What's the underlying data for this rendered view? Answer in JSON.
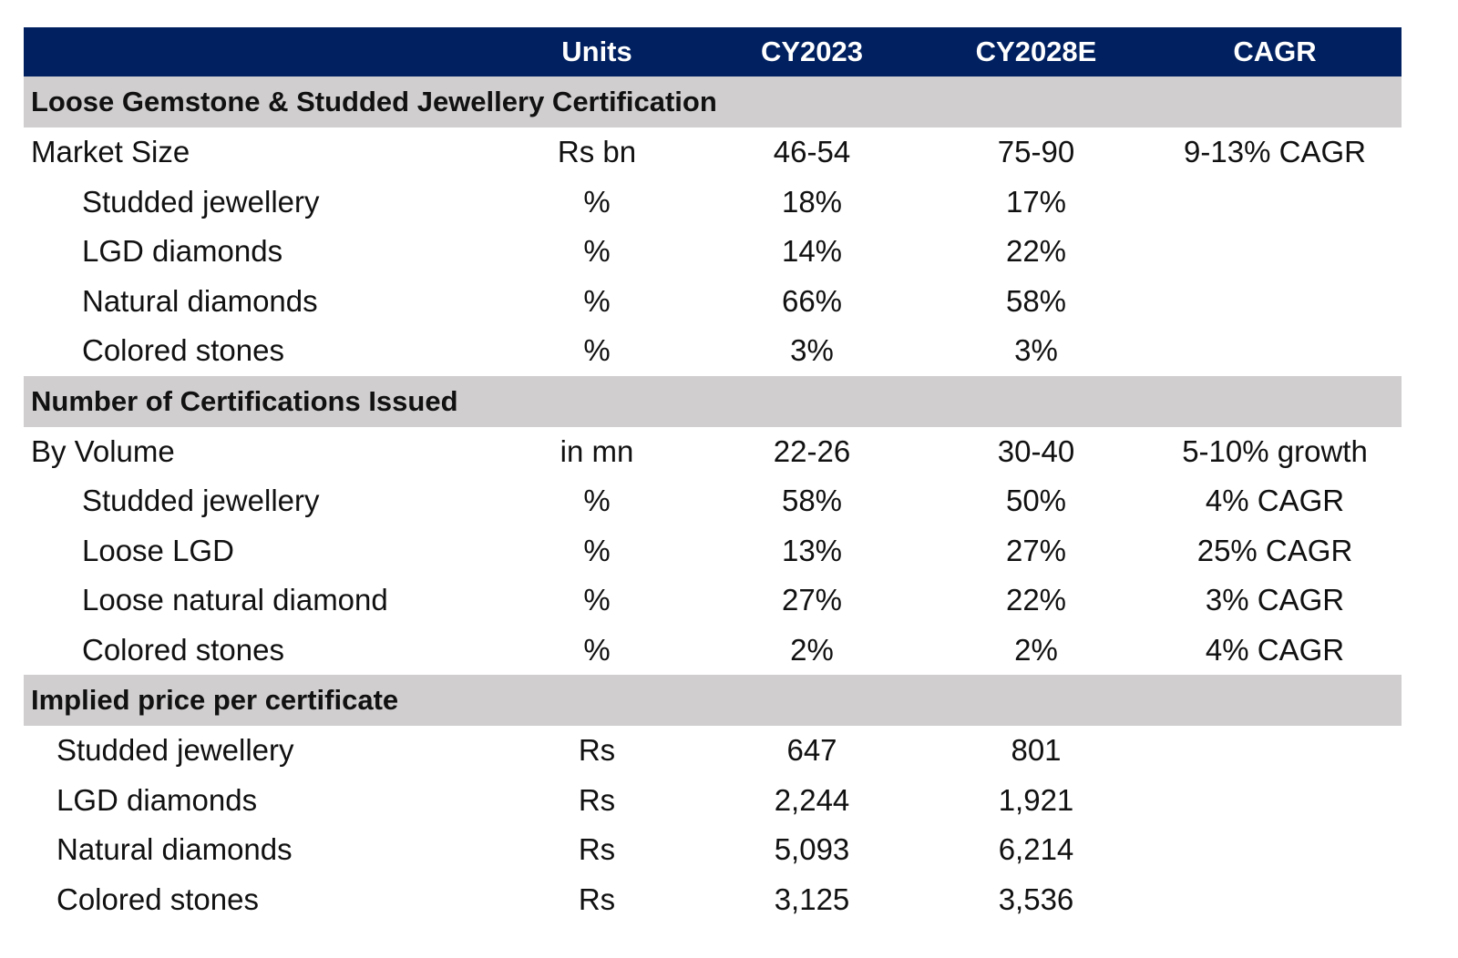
{
  "header": {
    "units": "Units",
    "cy2023": "CY2023",
    "cy2028e": "CY2028E",
    "cagr": "CAGR"
  },
  "colors": {
    "header_bg": "#002060",
    "section_bg": "#d0cece"
  },
  "sections": [
    {
      "title": "Loose Gemstone & Studded Jewellery Certification",
      "rows": [
        {
          "label": "Market Size",
          "units": "Rs bn",
          "cy2023": "46-54",
          "cy2028e": "75-90",
          "cagr": "9-13% CAGR"
        },
        {
          "label": "Studded jewellery",
          "units": "%",
          "cy2023": "18%",
          "cy2028e": "17%",
          "cagr": ""
        },
        {
          "label": "LGD diamonds",
          "units": "%",
          "cy2023": "14%",
          "cy2028e": "22%",
          "cagr": ""
        },
        {
          "label": "Natural diamonds",
          "units": "%",
          "cy2023": "66%",
          "cy2028e": "58%",
          "cagr": ""
        },
        {
          "label": "Colored stones",
          "units": "%",
          "cy2023": "3%",
          "cy2028e": "3%",
          "cagr": ""
        }
      ]
    },
    {
      "title": "Number of Certifications Issued",
      "rows": [
        {
          "label": "By Volume",
          "units": "in mn",
          "cy2023": "22-26",
          "cy2028e": "30-40",
          "cagr": "5-10% growth"
        },
        {
          "label": "Studded jewellery",
          "units": "%",
          "cy2023": "58%",
          "cy2028e": "50%",
          "cagr": "4% CAGR"
        },
        {
          "label": "Loose LGD",
          "units": "%",
          "cy2023": "13%",
          "cy2028e": "27%",
          "cagr": "25% CAGR"
        },
        {
          "label": "Loose natural diamond",
          "units": "%",
          "cy2023": "27%",
          "cy2028e": "22%",
          "cagr": "3% CAGR"
        },
        {
          "label": "Colored stones",
          "units": "%",
          "cy2023": "2%",
          "cy2028e": "2%",
          "cagr": "4% CAGR"
        }
      ]
    },
    {
      "title": "Implied price per certificate",
      "rows": [
        {
          "label": "Studded jewellery",
          "units": "Rs",
          "cy2023": "647",
          "cy2028e": "801",
          "cagr": ""
        },
        {
          "label": "LGD diamonds",
          "units": "Rs",
          "cy2023": "2,244",
          "cy2028e": "1,921",
          "cagr": ""
        },
        {
          "label": "Natural diamonds",
          "units": "Rs",
          "cy2023": "5,093",
          "cy2028e": "6,214",
          "cagr": ""
        },
        {
          "label": "Colored stones",
          "units": "Rs",
          "cy2023": "3,125",
          "cy2028e": "3,536",
          "cagr": ""
        }
      ]
    }
  ]
}
